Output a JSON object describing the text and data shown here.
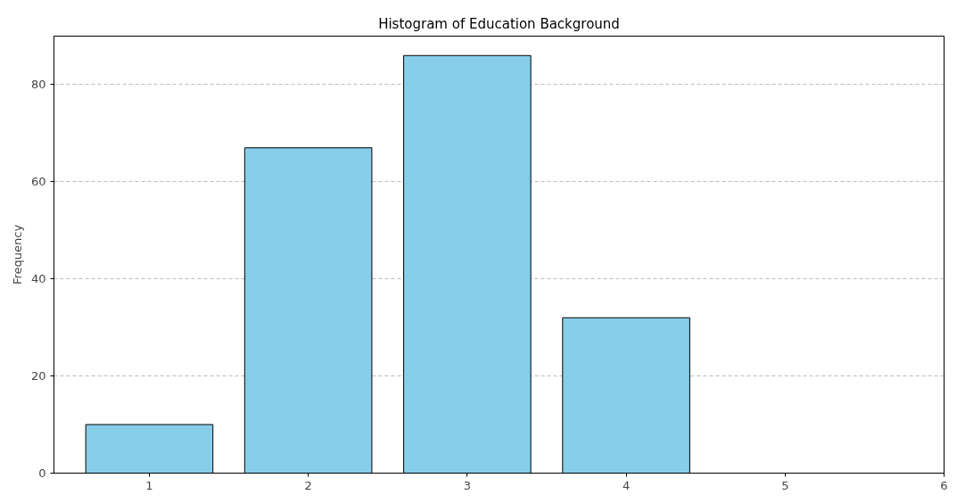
{
  "chart_data": {
    "type": "histogram",
    "title": "Histogram of Education Background",
    "ylabel": "Frequency",
    "bins": [
      0.5,
      1.5,
      2.5,
      3.5,
      4.5,
      5.5
    ],
    "values": [
      10,
      67,
      86,
      32,
      0
    ],
    "color": "#87ceeb",
    "xlim": [
      0.4,
      6
    ],
    "xticks": [
      1,
      2,
      3,
      4,
      5,
      6
    ],
    "ylim": [
      0,
      90
    ],
    "yticks": [
      0,
      20,
      40,
      60,
      80
    ],
    "grid": "y"
  }
}
